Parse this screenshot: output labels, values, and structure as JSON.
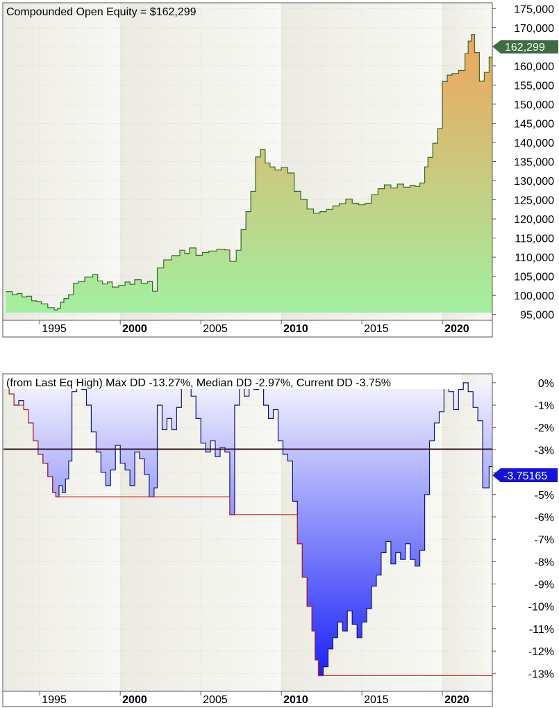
{
  "colors": {
    "equity_fill_top": "#F0A45C",
    "equity_fill_bottom": "#A2F0A0",
    "equity_line": "#3A6A2E",
    "equity_marker": "#3E6E3E",
    "dd_fill_top": "#F4F4FC",
    "dd_fill_bottom": "#1A22F8",
    "dd_line": "#101880",
    "dd_marker": "#1414D8",
    "max_dd_line": "#CC2020",
    "median_line": "#301828",
    "band_dark": "#ECEBE2",
    "band_light": "#F8F8F4",
    "grid": "#C8C8C8"
  },
  "chart_data": [
    {
      "type": "area",
      "title": "Compounded Open Equity = $162,299",
      "current_value_label": "162,299",
      "ylim": [
        93500,
        176500
      ],
      "y_ticks": [
        95000,
        100000,
        105000,
        110000,
        115000,
        120000,
        125000,
        130000,
        135000,
        140000,
        145000,
        150000,
        155000,
        160000,
        165000,
        170000,
        175000
      ],
      "y_tick_labels": [
        "95,000",
        "100,000",
        "105,000",
        "110,000",
        "115,000",
        "120,000",
        "125,000",
        "130,000",
        "135,000",
        "140,000",
        "145,000",
        "150,000",
        "155,000",
        "160,000",
        "165,000",
        "170,000",
        "175,000"
      ],
      "x_ticks": [
        1995,
        2000,
        2005,
        2010,
        2015,
        2020
      ],
      "x_tick_labels": [
        "1995",
        "2000",
        "2005",
        "2010",
        "2015",
        "2020"
      ],
      "bold_x_ticks": [
        "2000",
        "2010",
        "2020"
      ],
      "x": [
        1992.9,
        1993.0,
        1993.3,
        1993.6,
        1993.9,
        1994.2,
        1994.5,
        1994.8,
        1995.1,
        1995.5,
        1995.9,
        1996.1,
        1996.3,
        1996.5,
        1996.8,
        1997.1,
        1997.4,
        1997.8,
        1998.3,
        1998.6,
        1998.9,
        1999.2,
        1999.5,
        1999.9,
        2000.3,
        2000.6,
        2000.9,
        2001.3,
        2001.7,
        2002.0,
        2002.3,
        2002.7,
        2003.2,
        2003.7,
        2004.0,
        2004.3,
        2004.7,
        2005.1,
        2005.5,
        2006.0,
        2006.5,
        2006.8,
        2007.2,
        2007.5,
        2007.8,
        2008.1,
        2008.4,
        2008.7,
        2009.0,
        2009.3,
        2009.6,
        2010.0,
        2010.4,
        2010.8,
        2011.2,
        2011.6,
        2012.0,
        2012.4,
        2012.8,
        2013.2,
        2013.6,
        2014.0,
        2014.4,
        2014.8,
        2015.2,
        2015.6,
        2016.0,
        2016.4,
        2016.8,
        2017.2,
        2017.6,
        2018.0,
        2018.3,
        2018.6,
        2018.9,
        2019.1,
        2019.4,
        2019.7,
        2020.0,
        2020.3,
        2020.6,
        2021.0,
        2021.4,
        2021.6,
        2021.8,
        2022.0,
        2022.3,
        2022.6,
        2022.9
      ],
      "values": [
        101000,
        101000,
        100200,
        100500,
        99600,
        99800,
        98600,
        98400,
        97800,
        96800,
        96200,
        96600,
        98200,
        99200,
        100200,
        103200,
        103600,
        104800,
        105500,
        103800,
        103000,
        103500,
        102200,
        102600,
        103500,
        102900,
        104100,
        103200,
        103600,
        101100,
        107200,
        109300,
        110400,
        111800,
        111000,
        112400,
        110500,
        111200,
        111600,
        112100,
        111900,
        108900,
        111800,
        117200,
        121900,
        127200,
        136200,
        138100,
        134600,
        133600,
        132800,
        133400,
        132000,
        127200,
        125100,
        122600,
        121500,
        121900,
        122500,
        123400,
        124000,
        125200,
        124100,
        123700,
        124100,
        126300,
        127900,
        128900,
        128100,
        129100,
        128300,
        128800,
        128500,
        129400,
        133600,
        136100,
        139800,
        143600,
        155900,
        157600,
        158000,
        158800,
        163200,
        166500,
        168200,
        163500,
        156000,
        158300,
        162299
      ]
    },
    {
      "type": "area",
      "title": "(from Last Eq High) Max DD -13.27%, Median DD -2.97%, Current DD -3.75%",
      "current_value_label": "-3.75165",
      "median_value": -2.97,
      "max_value": -13.27,
      "ylim": [
        -13.8,
        0.4
      ],
      "y_ticks": [
        0,
        -1,
        -2,
        -3,
        -4,
        -5,
        -6,
        -7,
        -8,
        -9,
        -10,
        -11,
        -12,
        -13
      ],
      "y_tick_labels": [
        "0%",
        "-1%",
        "-2%",
        "-3%",
        "-4%",
        "-5%",
        "-6%",
        "-7%",
        "-8%",
        "-9%",
        "-10%",
        "-11%",
        "-12%",
        "-13%"
      ],
      "x_ticks": [
        1995,
        2000,
        2005,
        2010,
        2015,
        2020
      ],
      "x_tick_labels": [
        "1995",
        "2000",
        "2005",
        "2010",
        "2015",
        "2020"
      ],
      "bold_x_ticks": [
        "2000",
        "2010",
        "2020"
      ],
      "x": [
        1992.9,
        1993.1,
        1993.4,
        1993.7,
        1994.0,
        1994.3,
        1994.6,
        1994.9,
        1995.2,
        1995.5,
        1995.8,
        1996.0,
        1996.2,
        1996.4,
        1996.6,
        1996.8,
        1997.0,
        1997.3,
        1997.6,
        1997.9,
        1998.2,
        1998.5,
        1998.8,
        1999.1,
        1999.4,
        1999.7,
        2000.0,
        2000.3,
        2000.6,
        2000.9,
        2001.2,
        2001.5,
        2001.8,
        2002.1,
        2002.3,
        2002.6,
        2002.9,
        2003.2,
        2003.5,
        2003.8,
        2004.1,
        2004.4,
        2004.7,
        2005.0,
        2005.3,
        2005.6,
        2005.9,
        2006.2,
        2006.5,
        2006.8,
        2007.1,
        2007.4,
        2007.7,
        2008.0,
        2008.3,
        2008.6,
        2008.9,
        2009.2,
        2009.5,
        2009.8,
        2010.1,
        2010.4,
        2010.7,
        2011.0,
        2011.3,
        2011.6,
        2011.9,
        2012.1,
        2012.3,
        2012.6,
        2012.9,
        2013.2,
        2013.5,
        2013.8,
        2014.1,
        2014.4,
        2014.7,
        2015.0,
        2015.3,
        2015.6,
        2015.9,
        2016.2,
        2016.5,
        2016.8,
        2017.1,
        2017.4,
        2017.7,
        2018.0,
        2018.3,
        2018.6,
        2018.9,
        2019.2,
        2019.5,
        2019.8,
        2020.1,
        2020.4,
        2020.7,
        2021.0,
        2021.3,
        2021.6,
        2021.9,
        2022.2,
        2022.5,
        2022.9
      ],
      "values": [
        0,
        -0.5,
        -1.0,
        -0.8,
        -1.2,
        -1.8,
        -2.6,
        -3.2,
        -3.6,
        -4.2,
        -4.9,
        -5.1,
        -4.6,
        -4.9,
        -4.3,
        -3.5,
        -0.4,
        0,
        -0.3,
        -1.0,
        -2.2,
        -3.1,
        -4.0,
        -4.6,
        -3.9,
        -2.8,
        -3.6,
        -3.9,
        -4.6,
        -3.1,
        -3.4,
        -4.1,
        -5.1,
        -4.7,
        -1.0,
        -2.1,
        -1.6,
        -2.1,
        -1.1,
        0,
        0,
        -0.6,
        -1.6,
        -2.7,
        -3.1,
        -2.6,
        -3.3,
        -2.9,
        -3.1,
        -5.9,
        -1.0,
        0,
        -0.6,
        0,
        -0.3,
        0,
        -1.0,
        -1.6,
        -1.2,
        -2.6,
        -3.2,
        -3.5,
        -5.3,
        -7.2,
        -8.7,
        -10.0,
        -11.1,
        -12.4,
        -13.1,
        -12.7,
        -11.9,
        -11.4,
        -10.7,
        -11.1,
        -10.2,
        -10.8,
        -11.4,
        -10.7,
        -10.1,
        -9.1,
        -8.6,
        -7.6,
        -7.1,
        -8.1,
        -7.6,
        -7.9,
        -7.2,
        -7.9,
        -8.2,
        -7.5,
        -5.0,
        -2.6,
        -1.8,
        -1.3,
        0,
        -0.4,
        -1.2,
        -0.3,
        0,
        -0.4,
        -1.1,
        -1.7,
        -4.7,
        -3.75
      ]
    }
  ]
}
